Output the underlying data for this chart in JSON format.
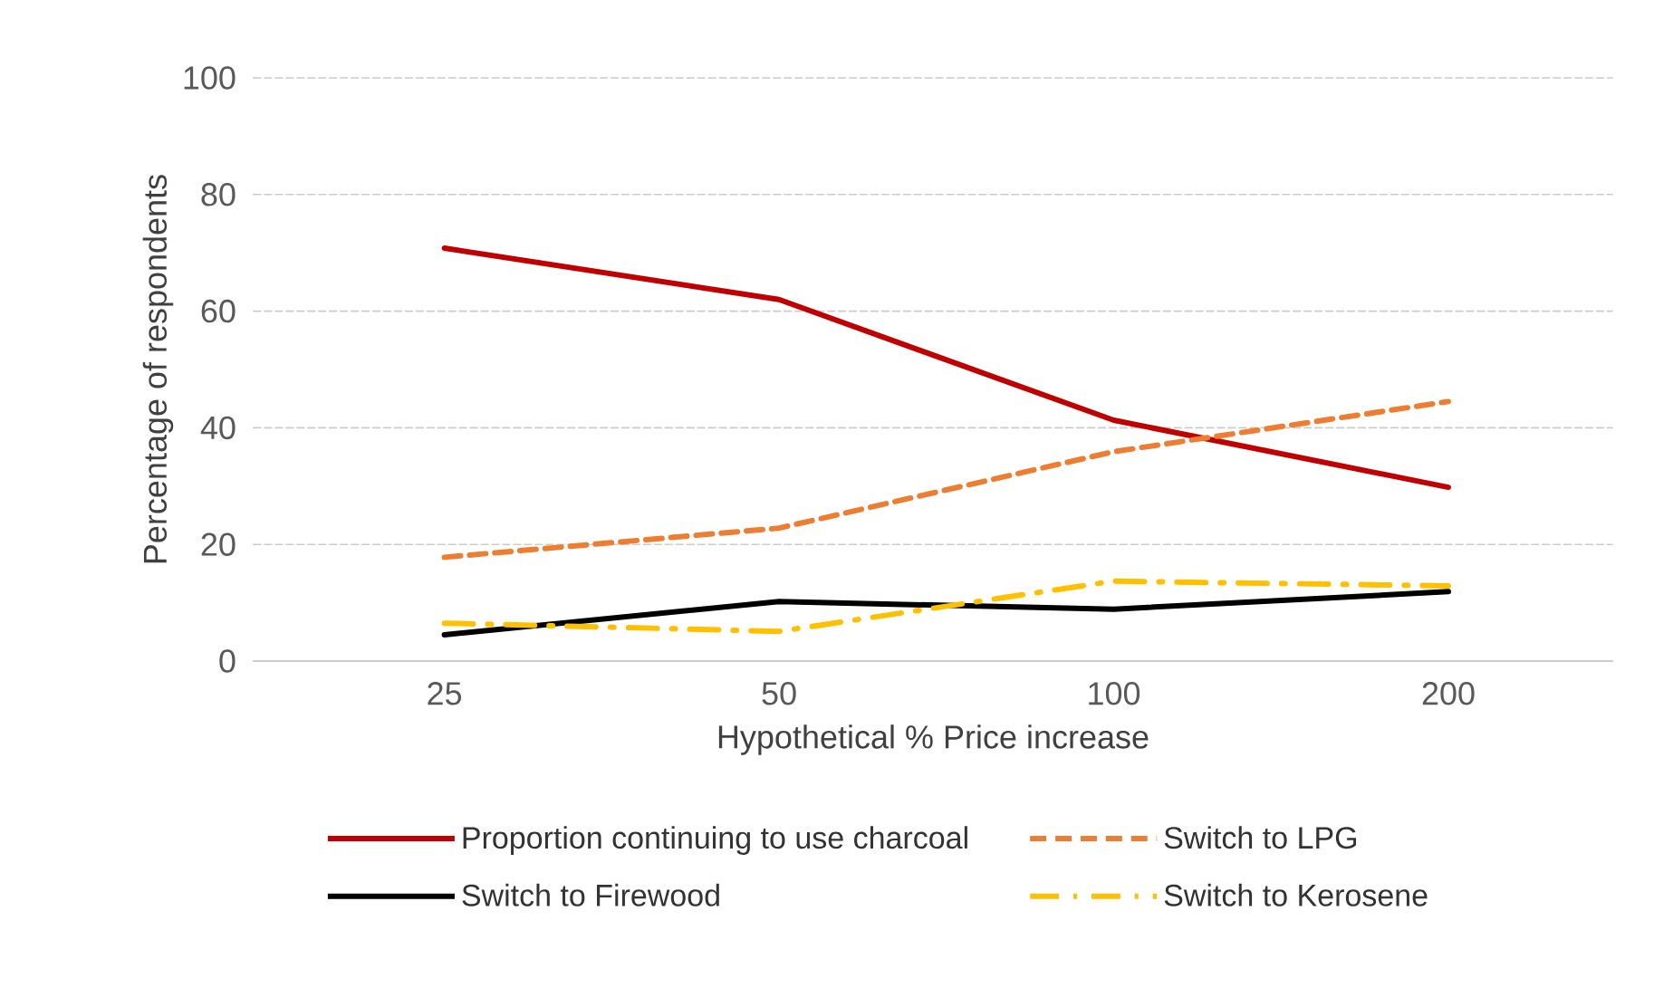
{
  "chart_data": {
    "type": "line",
    "xlabel": "Hypothetical % Price increase",
    "ylabel": "Percentage of respondents",
    "categories": [
      "25",
      "50",
      "100",
      "200"
    ],
    "series": [
      {
        "name": "Proportion continuing to use charcoal",
        "color": "#c00000",
        "line_style": "solid",
        "values": [
          70.8,
          62,
          41.3,
          29.8
        ]
      },
      {
        "name": "Switch to LPG",
        "color": "#ed7d31",
        "line_style": "dashed",
        "values": [
          17.8,
          22.8,
          35.9,
          44.5
        ]
      },
      {
        "name": "Switch to Firewood",
        "color": "#000000",
        "line_style": "solid",
        "values": [
          4.5,
          10.2,
          8.9,
          11.9
        ]
      },
      {
        "name": "Switch to Kerosene",
        "color": "#ffc000",
        "line_style": "dashdot",
        "values": [
          6.5,
          5.1,
          13.7,
          12.9
        ]
      }
    ],
    "ylim": [
      0,
      100
    ],
    "yticks": [
      0,
      20,
      40,
      60,
      80,
      100
    ],
    "grid": "y",
    "legend": "bottom"
  }
}
